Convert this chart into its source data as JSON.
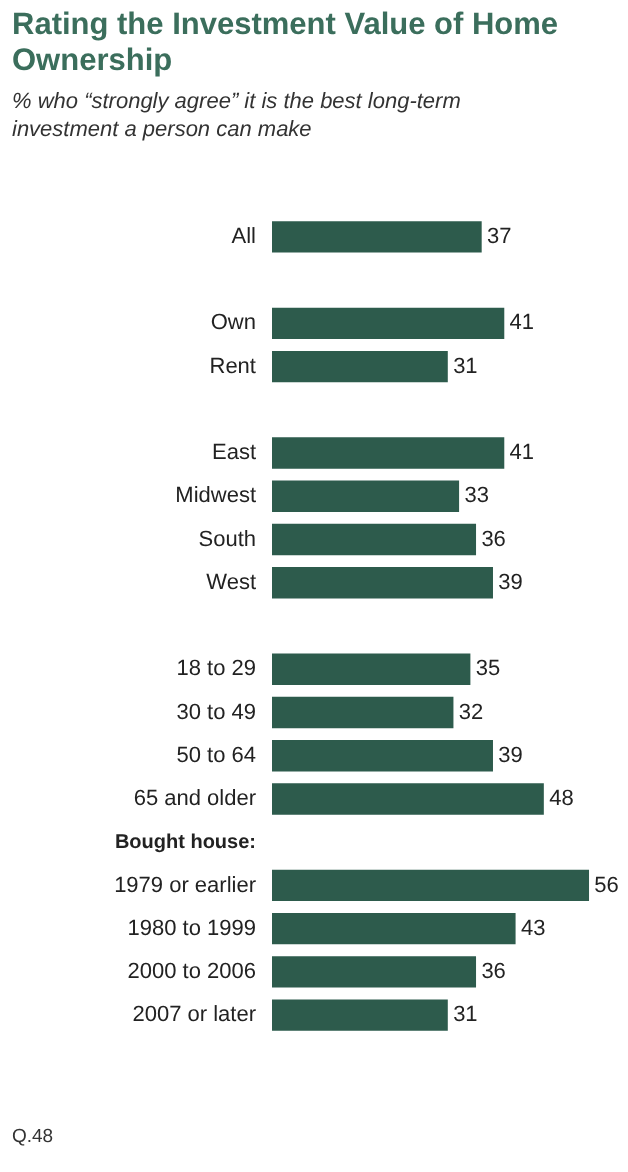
{
  "chart_data": {
    "type": "bar",
    "orientation": "horizontal",
    "title": "Rating the Investment Value of Home Ownership",
    "subtitle": "% who “strongly agree” it is the best long-term investment a person can make",
    "categories": [
      "All",
      null,
      "Own",
      "Rent",
      null,
      "East",
      "Midwest",
      "South",
      "West",
      null,
      "18 to 29",
      "30 to 49",
      "50 to 64",
      "65 and older",
      null,
      "1979 or earlier",
      "1980 to 1999",
      "2000 to 2006",
      "2007 or later"
    ],
    "values": [
      37,
      null,
      41,
      31,
      null,
      41,
      33,
      36,
      39,
      null,
      35,
      32,
      39,
      48,
      null,
      56,
      43,
      36,
      31
    ],
    "color": "#2d5b4c",
    "data_labels": true,
    "grid": false,
    "legend": false,
    "annotations": [
      "Bought house:",
      "Q.48"
    ]
  }
}
